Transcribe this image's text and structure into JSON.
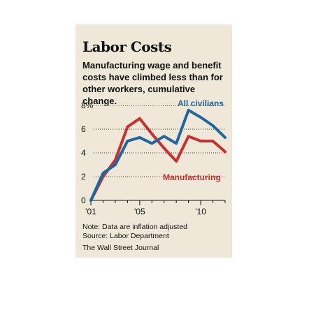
{
  "chart_data": {
    "type": "line",
    "title": "Labor Costs",
    "subtitle": "Manufacturing wage and benefit costs have climbed less than for other workers, cumulative change.",
    "x": [
      2001,
      2002,
      2003,
      2004,
      2005,
      2006,
      2007,
      2008,
      2009,
      2010,
      2011,
      2012
    ],
    "x_ticks": [
      2001,
      2005,
      2010
    ],
    "x_tick_labels": [
      "'01",
      "'05",
      "'10"
    ],
    "xlim": [
      2001,
      2012
    ],
    "ylim": [
      0,
      8
    ],
    "y_ticks": [
      0,
      2,
      4,
      6,
      8
    ],
    "y_tick_labels": [
      "0",
      "2",
      "4",
      "6",
      "8%"
    ],
    "grid": "dotted horizontal",
    "series": [
      {
        "name": "All civilians",
        "color": "#1f66a0",
        "values": [
          0,
          2.3,
          3.0,
          5.0,
          5.3,
          4.8,
          5.4,
          4.8,
          7.6,
          7.0,
          6.3,
          5.3
        ]
      },
      {
        "name": "Manufacturing",
        "color": "#c5312f",
        "values": [
          0,
          2.0,
          3.4,
          6.2,
          6.9,
          5.6,
          4.4,
          3.3,
          5.4,
          5.0,
          5.0,
          4.1
        ]
      }
    ]
  },
  "footer": {
    "note": "Note: Data are inflation adjusted",
    "source": "Source: Labor Department",
    "credit": "The Wall Street Journal"
  }
}
